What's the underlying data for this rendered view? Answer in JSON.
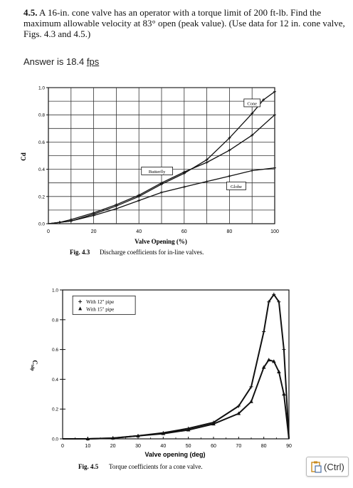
{
  "problem": {
    "number": "4.5.",
    "text": "A 16-in. cone valve has an operator with a torque limit of 200 ft-lb. Find the maximum allowable velocity at 83° open (peak value). (Use data for 12 in. cone valve, Figs. 4.3 and 4.5.)"
  },
  "answer": {
    "prefix": "Answer is 18.4 ",
    "link_text": "fps"
  },
  "paste_button": {
    "label": "(Ctrl)",
    "icon": "clipboard-icon"
  },
  "chart_data": [
    {
      "type": "line",
      "caption_label": "Fig. 4.3",
      "caption_text": "Discharge coefficients for in-line valves.",
      "xlabel": "Valve Opening (%)",
      "ylabel": "Cd",
      "xlim": [
        0,
        100
      ],
      "ylim": [
        0,
        1.0
      ],
      "x_ticks": [
        "0",
        "20",
        "40",
        "60",
        "80",
        "100"
      ],
      "y_ticks": [
        "0.0",
        "0.2",
        "0.4",
        "0.6",
        "0.8",
        "1.0"
      ],
      "grid": true,
      "series": [
        {
          "name": "Cone",
          "x": [
            0,
            5,
            10,
            20,
            30,
            40,
            50,
            60,
            70,
            80,
            90,
            95,
            100
          ],
          "y": [
            0.0,
            0.01,
            0.02,
            0.07,
            0.13,
            0.2,
            0.29,
            0.37,
            0.47,
            0.63,
            0.81,
            0.91,
            0.97
          ]
        },
        {
          "name": "Butterfly",
          "x": [
            0,
            5,
            10,
            20,
            30,
            40,
            50,
            60,
            70,
            80,
            90,
            100
          ],
          "y": [
            0.0,
            0.01,
            0.03,
            0.08,
            0.14,
            0.21,
            0.3,
            0.38,
            0.45,
            0.54,
            0.65,
            0.8
          ]
        },
        {
          "name": "Globe",
          "x": [
            0,
            5,
            10,
            20,
            30,
            40,
            50,
            60,
            70,
            80,
            90,
            100
          ],
          "y": [
            0.0,
            0.01,
            0.02,
            0.06,
            0.11,
            0.17,
            0.23,
            0.27,
            0.31,
            0.35,
            0.39,
            0.41
          ]
        }
      ]
    },
    {
      "type": "line",
      "caption_label": "Fig. 4.5",
      "caption_text": "Torque coefficients for a cone valve.",
      "xlabel": "Valve opening (deg)",
      "ylabel": "Ctdp",
      "xlim": [
        0,
        90
      ],
      "ylim": [
        0,
        1.0
      ],
      "x_ticks": [
        "0",
        "10",
        "20",
        "30",
        "40",
        "50",
        "60",
        "70",
        "80",
        "90"
      ],
      "y_ticks": [
        "0.0",
        "0.2",
        "0.4",
        "0.6",
        "0.8",
        "1.0"
      ],
      "legend": [
        "With 12\" pipe",
        "With 15\" pipe"
      ],
      "legend_position": "top-left",
      "grid": false,
      "series": [
        {
          "name": "With 12\" pipe",
          "marker": "+",
          "x": [
            0,
            10,
            20,
            30,
            40,
            50,
            60,
            70,
            75,
            80,
            82,
            84,
            86,
            88,
            90
          ],
          "y": [
            0.0,
            0.0,
            0.005,
            0.02,
            0.04,
            0.07,
            0.11,
            0.22,
            0.35,
            0.72,
            0.92,
            0.97,
            0.92,
            0.6,
            0.0
          ]
        },
        {
          "name": "With 15\" pipe",
          "marker": "triangle",
          "x": [
            0,
            10,
            20,
            30,
            40,
            50,
            60,
            70,
            75,
            80,
            82,
            84,
            86,
            88,
            90
          ],
          "y": [
            0.0,
            0.0,
            0.005,
            0.02,
            0.035,
            0.06,
            0.1,
            0.17,
            0.25,
            0.48,
            0.53,
            0.52,
            0.45,
            0.3,
            0.0
          ]
        }
      ]
    }
  ]
}
